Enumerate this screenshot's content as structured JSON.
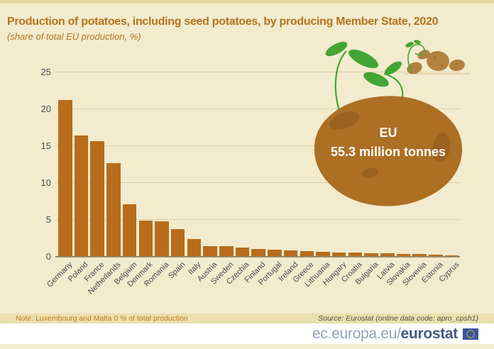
{
  "header": {
    "title": "Production of potatoes, including seed potatoes, by producing Member State, 2020",
    "subtitle": "(share of total EU production, %)"
  },
  "chart_data": {
    "type": "bar",
    "title": "Production of potatoes, including seed potatoes, by producing Member State, 2020",
    "subtitle": "(share of total EU production, %)",
    "categories": [
      "Germany",
      "Poland",
      "France",
      "Netherlands",
      "Belgium",
      "Denmark",
      "Romania",
      "Spain",
      "Italy",
      "Austria",
      "Sweden",
      "Czechia",
      "Finland",
      "Portugal",
      "Ireland",
      "Greece",
      "Lithuania",
      "Hungary",
      "Croatia",
      "Bulgaria",
      "Latvia",
      "Slovakia",
      "Slovenia",
      "Estonia",
      "Cyprus"
    ],
    "values": [
      21.2,
      16.4,
      15.6,
      12.6,
      7.1,
      4.9,
      4.8,
      3.7,
      2.4,
      1.4,
      1.4,
      1.2,
      1.0,
      0.9,
      0.8,
      0.7,
      0.6,
      0.55,
      0.5,
      0.45,
      0.4,
      0.35,
      0.3,
      0.25,
      0.1
    ],
    "xlabel": "",
    "ylabel": "",
    "ylim": [
      0,
      25
    ],
    "yticks": [
      0,
      5,
      10,
      15,
      20,
      25
    ],
    "grid": "horizontal",
    "legend": "none",
    "bar_color": "#b76d1c",
    "annotation": {
      "line1": "EU",
      "line2": "55.3 million tonnes"
    }
  },
  "annotation": {
    "line1": "EU",
    "line2": "55.3 million tonnes"
  },
  "footer": {
    "note": "Note: Luxembourg and Malta 0 % of total production",
    "source": "Source: Eurostat (online data code: apro_cpsh1)"
  },
  "branding": {
    "url_prefix": "ec.europa.eu/",
    "url_bold": "eurostat"
  },
  "colors": {
    "background": "#f2ebce",
    "accent_brown": "#b4731d",
    "bar": "#b76d1c",
    "potato": "#ad6f24",
    "sprout_green": "#44a434",
    "brand_blue": "#475a84",
    "flag_blue": "#3a53a3"
  }
}
